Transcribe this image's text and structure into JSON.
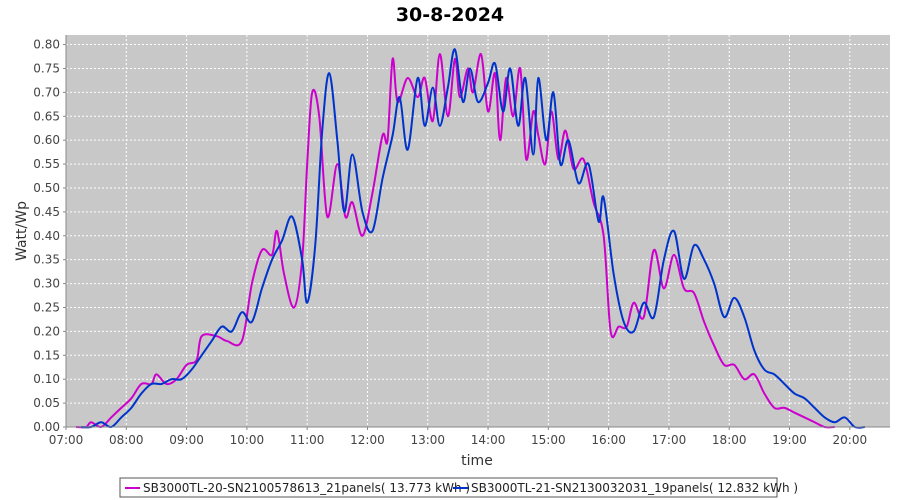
{
  "chart_data": {
    "type": "line",
    "title": "30-8-2024",
    "xlabel": "time",
    "ylabel": "Watt/Wp",
    "x_ticks": [
      "07:00",
      "08:00",
      "09:00",
      "10:00",
      "11:00",
      "12:00",
      "13:00",
      "14:00",
      "15:00",
      "16:00",
      "17:00",
      "18:00",
      "19:00",
      "20:00"
    ],
    "y_ticks": [
      "0.00",
      "0.05",
      "0.10",
      "0.15",
      "0.20",
      "0.25",
      "0.30",
      "0.35",
      "0.40",
      "0.45",
      "0.50",
      "0.55",
      "0.60",
      "0.65",
      "0.70",
      "0.75",
      "0.80"
    ],
    "xlim": [
      "07:00",
      "20:40"
    ],
    "ylim": [
      0,
      0.82
    ],
    "grid": true,
    "legend_position": "bottom",
    "plot_background": "#c8c8c8",
    "series": [
      {
        "name": "SB3000TL-20-SN2100578613_21panels( 13.773 kWh )",
        "color": "#cc00cc",
        "points": [
          [
            "07:10",
            0.0
          ],
          [
            "07:20",
            0.0
          ],
          [
            "07:25",
            0.01
          ],
          [
            "07:35",
            0.0
          ],
          [
            "07:45",
            0.02
          ],
          [
            "07:55",
            0.04
          ],
          [
            "08:05",
            0.06
          ],
          [
            "08:15",
            0.09
          ],
          [
            "08:25",
            0.09
          ],
          [
            "08:30",
            0.11
          ],
          [
            "08:40",
            0.09
          ],
          [
            "08:50",
            0.1
          ],
          [
            "09:00",
            0.13
          ],
          [
            "09:10",
            0.14
          ],
          [
            "09:15",
            0.19
          ],
          [
            "09:30",
            0.19
          ],
          [
            "09:40",
            0.18
          ],
          [
            "09:55",
            0.18
          ],
          [
            "10:05",
            0.3
          ],
          [
            "10:15",
            0.37
          ],
          [
            "10:25",
            0.36
          ],
          [
            "10:30",
            0.41
          ],
          [
            "10:37",
            0.32
          ],
          [
            "10:47",
            0.25
          ],
          [
            "10:55",
            0.35
          ],
          [
            "11:00",
            0.55
          ],
          [
            "11:05",
            0.7
          ],
          [
            "11:12",
            0.65
          ],
          [
            "11:20",
            0.44
          ],
          [
            "11:30",
            0.55
          ],
          [
            "11:38",
            0.44
          ],
          [
            "11:45",
            0.47
          ],
          [
            "11:55",
            0.4
          ],
          [
            "12:05",
            0.49
          ],
          [
            "12:15",
            0.61
          ],
          [
            "12:20",
            0.6
          ],
          [
            "12:25",
            0.77
          ],
          [
            "12:30",
            0.68
          ],
          [
            "12:40",
            0.73
          ],
          [
            "12:50",
            0.69
          ],
          [
            "12:57",
            0.73
          ],
          [
            "13:05",
            0.64
          ],
          [
            "13:12",
            0.78
          ],
          [
            "13:20",
            0.65
          ],
          [
            "13:27",
            0.77
          ],
          [
            "13:32",
            0.69
          ],
          [
            "13:40",
            0.75
          ],
          [
            "13:45",
            0.7
          ],
          [
            "13:53",
            0.78
          ],
          [
            "14:00",
            0.66
          ],
          [
            "14:07",
            0.74
          ],
          [
            "14:12",
            0.6
          ],
          [
            "14:18",
            0.73
          ],
          [
            "14:25",
            0.65
          ],
          [
            "14:32",
            0.75
          ],
          [
            "14:38",
            0.56
          ],
          [
            "14:45",
            0.66
          ],
          [
            "14:50",
            0.61
          ],
          [
            "14:57",
            0.55
          ],
          [
            "15:03",
            0.66
          ],
          [
            "15:10",
            0.56
          ],
          [
            "15:17",
            0.62
          ],
          [
            "15:25",
            0.54
          ],
          [
            "15:35",
            0.56
          ],
          [
            "15:45",
            0.47
          ],
          [
            "15:55",
            0.4
          ],
          [
            "16:02",
            0.2
          ],
          [
            "16:10",
            0.21
          ],
          [
            "16:18",
            0.21
          ],
          [
            "16:25",
            0.26
          ],
          [
            "16:35",
            0.23
          ],
          [
            "16:45",
            0.37
          ],
          [
            "16:55",
            0.29
          ],
          [
            "17:05",
            0.36
          ],
          [
            "17:15",
            0.29
          ],
          [
            "17:25",
            0.28
          ],
          [
            "17:35",
            0.22
          ],
          [
            "17:45",
            0.17
          ],
          [
            "17:55",
            0.13
          ],
          [
            "18:05",
            0.13
          ],
          [
            "18:15",
            0.1
          ],
          [
            "18:25",
            0.11
          ],
          [
            "18:35",
            0.07
          ],
          [
            "18:45",
            0.04
          ],
          [
            "18:55",
            0.04
          ],
          [
            "19:05",
            0.03
          ],
          [
            "19:15",
            0.02
          ],
          [
            "19:25",
            0.01
          ],
          [
            "19:35",
            0.0
          ],
          [
            "19:45",
            0.0
          ]
        ]
      },
      {
        "name": "SB3000TL-21-SN2130032031_19panels( 12.832 kWh )",
        "color": "#0033cc",
        "points": [
          [
            "07:15",
            0.0
          ],
          [
            "07:25",
            0.0
          ],
          [
            "07:35",
            0.01
          ],
          [
            "07:45",
            0.0
          ],
          [
            "07:55",
            0.02
          ],
          [
            "08:05",
            0.04
          ],
          [
            "08:15",
            0.07
          ],
          [
            "08:25",
            0.09
          ],
          [
            "08:35",
            0.09
          ],
          [
            "08:45",
            0.1
          ],
          [
            "08:55",
            0.1
          ],
          [
            "09:05",
            0.12
          ],
          [
            "09:15",
            0.15
          ],
          [
            "09:25",
            0.18
          ],
          [
            "09:35",
            0.21
          ],
          [
            "09:45",
            0.2
          ],
          [
            "09:55",
            0.24
          ],
          [
            "10:05",
            0.22
          ],
          [
            "10:15",
            0.29
          ],
          [
            "10:25",
            0.35
          ],
          [
            "10:35",
            0.39
          ],
          [
            "10:45",
            0.44
          ],
          [
            "10:55",
            0.35
          ],
          [
            "11:00",
            0.26
          ],
          [
            "11:08",
            0.38
          ],
          [
            "11:15",
            0.62
          ],
          [
            "11:22",
            0.74
          ],
          [
            "11:30",
            0.6
          ],
          [
            "11:37",
            0.45
          ],
          [
            "11:45",
            0.57
          ],
          [
            "11:55",
            0.45
          ],
          [
            "12:05",
            0.41
          ],
          [
            "12:15",
            0.52
          ],
          [
            "12:25",
            0.61
          ],
          [
            "12:32",
            0.69
          ],
          [
            "12:40",
            0.58
          ],
          [
            "12:50",
            0.73
          ],
          [
            "12:57",
            0.63
          ],
          [
            "13:05",
            0.71
          ],
          [
            "13:12",
            0.63
          ],
          [
            "13:20",
            0.71
          ],
          [
            "13:27",
            0.79
          ],
          [
            "13:35",
            0.68
          ],
          [
            "13:42",
            0.75
          ],
          [
            "13:50",
            0.68
          ],
          [
            "14:00",
            0.72
          ],
          [
            "14:07",
            0.76
          ],
          [
            "14:15",
            0.66
          ],
          [
            "14:22",
            0.75
          ],
          [
            "14:30",
            0.63
          ],
          [
            "14:37",
            0.73
          ],
          [
            "14:45",
            0.57
          ],
          [
            "14:50",
            0.73
          ],
          [
            "14:58",
            0.6
          ],
          [
            "15:05",
            0.7
          ],
          [
            "15:12",
            0.55
          ],
          [
            "15:20",
            0.6
          ],
          [
            "15:30",
            0.51
          ],
          [
            "15:40",
            0.55
          ],
          [
            "15:50",
            0.43
          ],
          [
            "15:55",
            0.48
          ],
          [
            "16:05",
            0.32
          ],
          [
            "16:15",
            0.22
          ],
          [
            "16:25",
            0.2
          ],
          [
            "16:35",
            0.26
          ],
          [
            "16:45",
            0.23
          ],
          [
            "16:55",
            0.35
          ],
          [
            "17:05",
            0.41
          ],
          [
            "17:15",
            0.31
          ],
          [
            "17:25",
            0.38
          ],
          [
            "17:35",
            0.35
          ],
          [
            "17:45",
            0.3
          ],
          [
            "17:55",
            0.23
          ],
          [
            "18:05",
            0.27
          ],
          [
            "18:15",
            0.23
          ],
          [
            "18:25",
            0.16
          ],
          [
            "18:35",
            0.12
          ],
          [
            "18:45",
            0.11
          ],
          [
            "18:55",
            0.09
          ],
          [
            "19:05",
            0.07
          ],
          [
            "19:15",
            0.06
          ],
          [
            "19:25",
            0.04
          ],
          [
            "19:35",
            0.02
          ],
          [
            "19:45",
            0.01
          ],
          [
            "19:55",
            0.02
          ],
          [
            "20:05",
            0.0
          ],
          [
            "20:15",
            0.0
          ]
        ]
      }
    ]
  }
}
